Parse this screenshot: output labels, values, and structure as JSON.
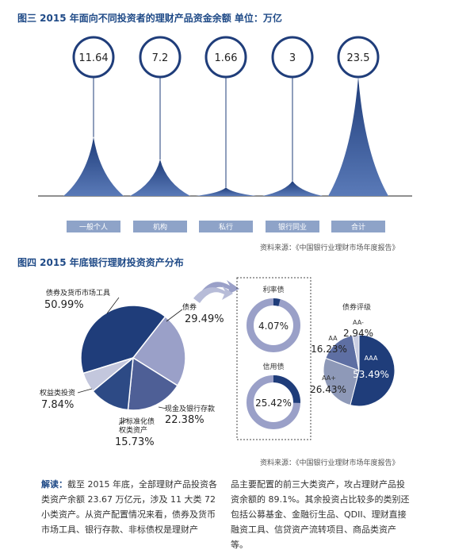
{
  "fig3": {
    "title": "图三  2015 年面向不同投资者的理财产品资金余额 单位：万亿",
    "source": "资料来源：《中国银行业理财市场年度报告》",
    "chart_data": {
      "type": "area",
      "categories": [
        "一般个人",
        "机构",
        "私行",
        "银行同业",
        "合计"
      ],
      "values": [
        11.64,
        7.2,
        1.66,
        3,
        23.5
      ],
      "value_labels": [
        "11.64",
        "7.2",
        "1.66",
        "3",
        "23.5"
      ],
      "title": "2015 年面向不同投资者的理财产品资金余额 单位：万亿"
    }
  },
  "fig4": {
    "title": "图四  2015 年底银行理财投资资产分布",
    "source": "资料来源：《中国银行业理财市场年度报告》",
    "chart_data": [
      {
        "type": "pie",
        "title": "",
        "categories": [
          "债券及货币市场工具",
          "债券",
          "现金及银行存款",
          "非标准化债权类资产",
          "权益类投资"
        ],
        "values": [
          50.99,
          29.49,
          22.38,
          15.73,
          7.84
        ],
        "labels": [
          "50.99%",
          "29.49%",
          "22.38%",
          "15.73%",
          "7.84%"
        ]
      },
      {
        "type": "pie",
        "title": "利率债",
        "values": [
          4.07
        ],
        "labels": [
          "4.07%"
        ]
      },
      {
        "type": "pie",
        "title": "信用债",
        "values": [
          25.42
        ],
        "labels": [
          "25.42%"
        ]
      },
      {
        "type": "pie",
        "title": "债券评级",
        "categories": [
          "AAA",
          "AA+",
          "AA",
          "AA-"
        ],
        "values": [
          53.49,
          26.43,
          16.23,
          2.94
        ],
        "labels": [
          "53.49%",
          "26.43%",
          "16.23%",
          "2.94%"
        ]
      }
    ],
    "pie_text": {
      "bonds_money_label": "债券及货币市场工具",
      "bonds_label": "债券",
      "cash_label": "现金及银行存款",
      "nonstd_label_1": "非标准化债",
      "nonstd_label_2": "权类资产",
      "equity_label": "权益类投资"
    }
  },
  "colors": {
    "dark_blue": "#1f3d7a",
    "mid_blue": "#4e5f96",
    "light_purple": "#9aa0c8",
    "grey_blue": "#8e99b8",
    "cat_bar": "#8ea3c8",
    "title_blue": "#1f4a87"
  },
  "article": {
    "lead": "解读：",
    "col1": "截至 2015 年底，全部理财产品投资各类资产余额 23.67 万亿元，涉及 11 大类 72 小类资产。从资产配置情况来看，债券及货币市场工具、银行存款、非标债权是理财产",
    "col2": "品主要配置的前三大类资产，攻占理财产品投资余额的 89.1%。其余投资占比较多的类别还包括公募基金、金融衍生品、QDII、理财直接融资工具、信贷资产流转项目、商品类资产等。"
  }
}
